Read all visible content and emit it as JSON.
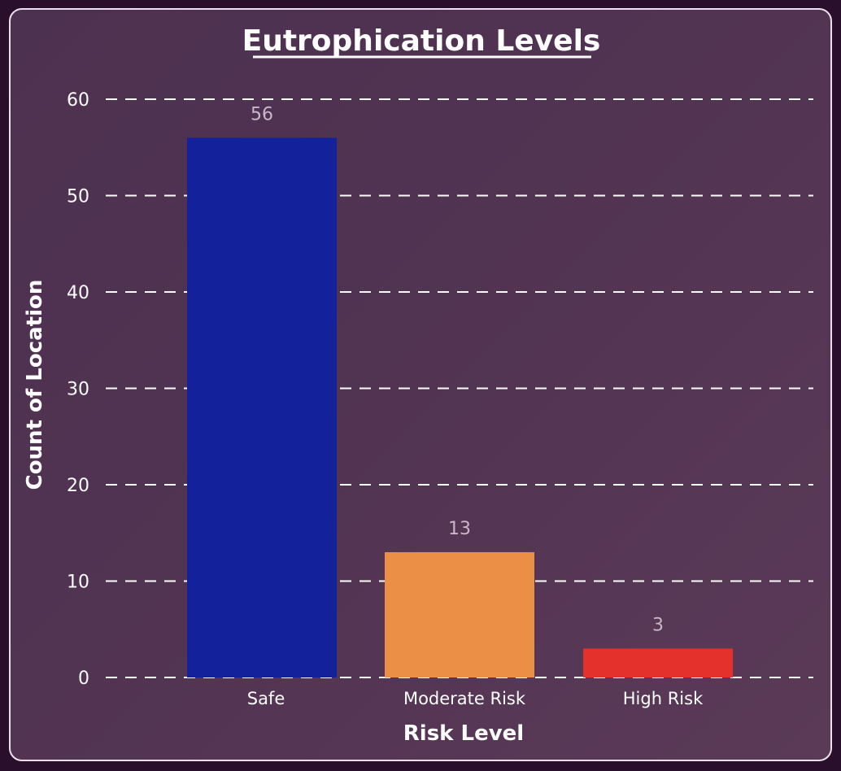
{
  "chart_data": {
    "type": "bar",
    "title": "Eutrophication Levels",
    "xlabel": "Risk Level",
    "ylabel": "Count of Location",
    "categories": [
      "Safe",
      "Moderate Risk",
      "High Risk"
    ],
    "values": [
      56,
      13,
      3
    ],
    "colors": [
      "#13229a",
      "#ea8f45",
      "#e5312b"
    ],
    "ylim": [
      0,
      60
    ],
    "yticks": [
      0,
      10,
      20,
      30,
      40,
      50,
      60
    ],
    "grid": true,
    "data_labels": true,
    "legend": "none"
  }
}
